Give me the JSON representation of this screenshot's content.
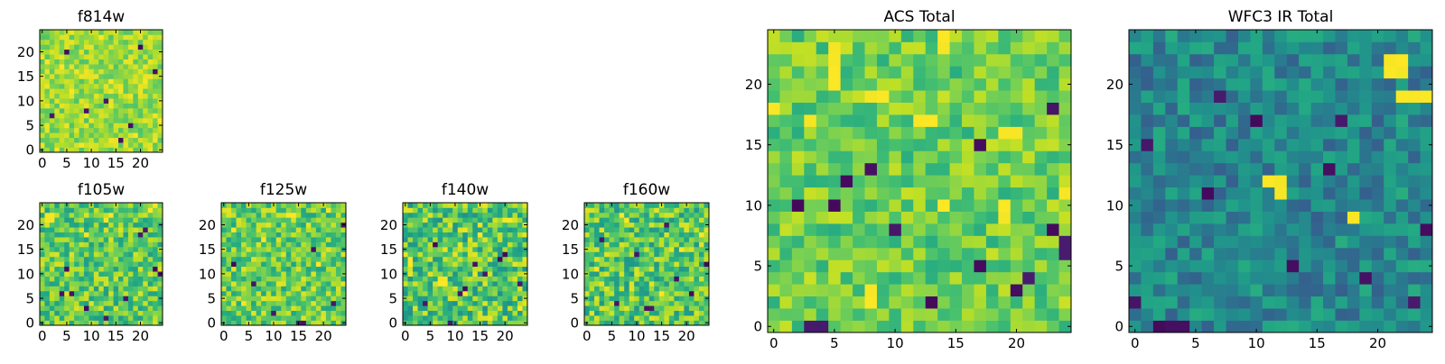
{
  "colors": {
    "background": "#ffffff",
    "axis": "#000000",
    "colormap": "viridis"
  },
  "chart_data": [
    {
      "id": "f814w",
      "type": "heatmap",
      "title": "f814w",
      "grid_size": 25,
      "xticks": [
        0,
        5,
        10,
        15,
        20
      ],
      "yticks": [
        0,
        5,
        10,
        15,
        20
      ],
      "xlim": [
        0,
        25
      ],
      "ylim": [
        0,
        25
      ],
      "value_range": [
        0.72,
        0.98
      ],
      "hot_cells": [
        [
          4,
          17
        ],
        [
          12,
          23
        ],
        [
          24,
          6
        ],
        [
          3,
          0
        ],
        [
          19,
          3
        ],
        [
          14,
          14
        ],
        [
          8,
          1
        ],
        [
          21,
          14
        ],
        [
          6,
          12
        ],
        [
          1,
          18
        ]
      ],
      "cold_cells": [
        [
          16,
          2
        ],
        [
          18,
          5
        ],
        [
          5,
          20
        ],
        [
          9,
          8
        ],
        [
          23,
          16
        ],
        [
          13,
          10
        ],
        [
          2,
          7
        ],
        [
          20,
          21
        ]
      ]
    },
    {
      "id": "f105w",
      "type": "heatmap",
      "title": "f105w",
      "grid_size": 25,
      "xticks": [
        0,
        5,
        10,
        15,
        20
      ],
      "yticks": [
        0,
        5,
        10,
        15,
        20
      ],
      "xlim": [
        0,
        25
      ],
      "ylim": [
        0,
        25
      ],
      "value_range": [
        0.55,
        0.95
      ],
      "hot_cells": [
        [
          1,
          22
        ],
        [
          2,
          22
        ],
        [
          1,
          21
        ],
        [
          2,
          21
        ],
        [
          14,
          22
        ],
        [
          13,
          21
        ],
        [
          22,
          23
        ],
        [
          23,
          24
        ],
        [
          9,
          18
        ]
      ],
      "cold_cells": [
        [
          5,
          11
        ],
        [
          4,
          6
        ],
        [
          20,
          18
        ],
        [
          21,
          19
        ],
        [
          23,
          11
        ],
        [
          24,
          10
        ],
        [
          17,
          5
        ],
        [
          13,
          1
        ],
        [
          9,
          3
        ],
        [
          6,
          6
        ]
      ]
    },
    {
      "id": "f125w",
      "type": "heatmap",
      "title": "f125w",
      "grid_size": 25,
      "xticks": [
        0,
        5,
        10,
        15,
        20
      ],
      "yticks": [
        0,
        5,
        10,
        15,
        20
      ],
      "xlim": [
        0,
        25
      ],
      "ylim": [
        0,
        25
      ],
      "value_range": [
        0.58,
        0.96
      ],
      "hot_cells": [
        [
          13,
          22
        ],
        [
          14,
          22
        ],
        [
          21,
          23
        ],
        [
          2,
          19
        ],
        [
          8,
          17
        ],
        [
          19,
          12
        ],
        [
          4,
          4
        ]
      ],
      "cold_cells": [
        [
          15,
          0
        ],
        [
          16,
          0
        ],
        [
          2,
          12
        ],
        [
          22,
          4
        ],
        [
          6,
          8
        ],
        [
          18,
          15
        ],
        [
          10,
          2
        ],
        [
          24,
          20
        ]
      ]
    },
    {
      "id": "f140w",
      "type": "heatmap",
      "title": "f140w",
      "grid_size": 25,
      "xticks": [
        0,
        5,
        10,
        15,
        20
      ],
      "yticks": [
        0,
        5,
        10,
        15,
        20
      ],
      "xlim": [
        0,
        25
      ],
      "ylim": [
        0,
        25
      ],
      "value_range": [
        0.5,
        0.97
      ],
      "hot_cells": [
        [
          7,
          9
        ],
        [
          8,
          9
        ],
        [
          7,
          8
        ],
        [
          8,
          8
        ],
        [
          12,
          6
        ],
        [
          20,
          21
        ],
        [
          21,
          21
        ],
        [
          1,
          12
        ],
        [
          1,
          13
        ],
        [
          15,
          18
        ],
        [
          23,
          3
        ]
      ],
      "cold_cells": [
        [
          20,
          14
        ],
        [
          19,
          13
        ],
        [
          14,
          12
        ],
        [
          4,
          4
        ],
        [
          11,
          6
        ],
        [
          9,
          0
        ],
        [
          12,
          7
        ],
        [
          6,
          16
        ],
        [
          23,
          8
        ],
        [
          16,
          10
        ]
      ]
    },
    {
      "id": "f160w",
      "type": "heatmap",
      "title": "f160w",
      "grid_size": 25,
      "xticks": [
        0,
        5,
        10,
        15,
        20
      ],
      "yticks": [
        0,
        5,
        10,
        15,
        20
      ],
      "xlim": [
        0,
        25
      ],
      "ylim": [
        0,
        25
      ],
      "value_range": [
        0.52,
        0.96
      ],
      "hot_cells": [
        [
          7,
          22
        ],
        [
          8,
          21
        ],
        [
          19,
          15
        ],
        [
          2,
          11
        ],
        [
          15,
          6
        ],
        [
          23,
          18
        ]
      ],
      "cold_cells": [
        [
          12,
          3
        ],
        [
          13,
          3
        ],
        [
          18,
          9
        ],
        [
          3,
          17
        ],
        [
          21,
          6
        ],
        [
          10,
          14
        ],
        [
          6,
          4
        ],
        [
          24,
          12
        ],
        [
          16,
          20
        ]
      ]
    },
    {
      "id": "acs_total",
      "type": "heatmap",
      "title": "ACS Total",
      "grid_size": 25,
      "xticks": [
        0,
        5,
        10,
        15,
        20
      ],
      "yticks": [
        0,
        5,
        10,
        15,
        20
      ],
      "xlim": [
        0,
        25
      ],
      "ylim": [
        0,
        25
      ],
      "value_range": [
        0.62,
        0.92
      ],
      "hot_cells": [
        [
          5,
          23
        ],
        [
          5,
          22
        ],
        [
          5,
          21
        ],
        [
          5,
          20
        ],
        [
          14,
          24
        ],
        [
          14,
          23
        ],
        [
          8,
          19
        ],
        [
          9,
          19
        ],
        [
          13,
          17
        ],
        [
          12,
          17
        ],
        [
          19,
          16
        ],
        [
          20,
          16
        ],
        [
          8,
          3
        ],
        [
          8,
          2
        ],
        [
          14,
          10
        ],
        [
          19,
          10
        ],
        [
          19,
          9
        ],
        [
          24,
          11
        ],
        [
          0,
          18
        ],
        [
          3,
          17
        ]
      ],
      "cold_cells": [
        [
          4,
          0
        ],
        [
          3,
          0
        ],
        [
          17,
          15
        ],
        [
          8,
          13
        ],
        [
          6,
          12
        ],
        [
          5,
          10
        ],
        [
          10,
          8
        ],
        [
          17,
          5
        ],
        [
          21,
          4
        ],
        [
          20,
          3
        ],
        [
          24,
          6
        ],
        [
          24,
          7
        ],
        [
          23,
          8
        ],
        [
          23,
          18
        ],
        [
          2,
          10
        ],
        [
          13,
          2
        ]
      ]
    },
    {
      "id": "wfc3_ir_total",
      "type": "heatmap",
      "title": "WFC3 IR Total",
      "grid_size": 25,
      "xticks": [
        0,
        5,
        10,
        15,
        20
      ],
      "yticks": [
        0,
        5,
        10,
        15,
        20
      ],
      "xlim": [
        0,
        25
      ],
      "ylim": [
        0,
        25
      ],
      "value_range": [
        0.3,
        0.62
      ],
      "hot_cells": [
        [
          21,
          22
        ],
        [
          22,
          22
        ],
        [
          21,
          21
        ],
        [
          22,
          21
        ],
        [
          22,
          19
        ],
        [
          23,
          19
        ],
        [
          24,
          19
        ],
        [
          11,
          12
        ],
        [
          12,
          12
        ],
        [
          12,
          11
        ],
        [
          18,
          9
        ]
      ],
      "cold_cells": [
        [
          7,
          19
        ],
        [
          10,
          17
        ],
        [
          16,
          13
        ],
        [
          6,
          11
        ],
        [
          0,
          2
        ],
        [
          2,
          0
        ],
        [
          3,
          0
        ],
        [
          4,
          0
        ],
        [
          23,
          2
        ],
        [
          19,
          4
        ],
        [
          13,
          5
        ],
        [
          1,
          15
        ],
        [
          17,
          17
        ],
        [
          24,
          8
        ]
      ]
    }
  ]
}
